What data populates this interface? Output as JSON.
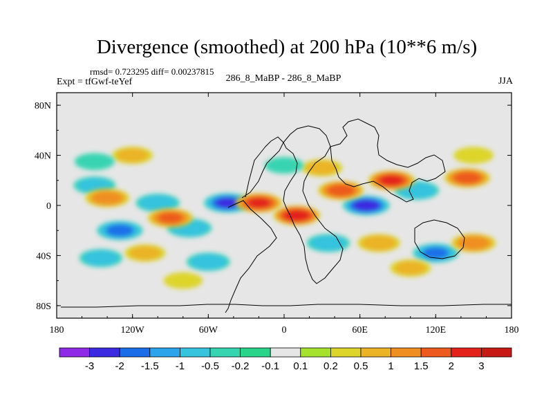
{
  "header": {
    "title": "Divergence (smoothed) at 200 hPa (10**6 m/s)",
    "stats": "rmsd= 0.723295 diff= 0.00237815",
    "experiment": "Expt = tfGwf-teYef",
    "case": "286_8_MaBP - 286_8_MaBP",
    "season": "JJA"
  },
  "chart_data": {
    "type": "heatmap",
    "title": "Divergence (smoothed) at 200 hPa (10**6 m/s)",
    "xlabel": "",
    "ylabel": "",
    "xlim": [
      -180,
      180
    ],
    "ylim": [
      -90,
      90
    ],
    "x_ticks": [
      {
        "value": -180,
        "label": "180"
      },
      {
        "value": -120,
        "label": "120W"
      },
      {
        "value": -60,
        "label": "60W"
      },
      {
        "value": 0,
        "label": "0"
      },
      {
        "value": 60,
        "label": "60E"
      },
      {
        "value": 120,
        "label": "120E"
      },
      {
        "value": 180,
        "label": "180"
      }
    ],
    "y_ticks": [
      {
        "value": 80,
        "label": "80N"
      },
      {
        "value": 40,
        "label": "40N"
      },
      {
        "value": 0,
        "label": "0"
      },
      {
        "value": -40,
        "label": "40S"
      },
      {
        "value": -80,
        "label": "80S"
      }
    ],
    "colorbar": {
      "labels": [
        "-3",
        "-2",
        "-1.5",
        "-1",
        "-0.5",
        "-0.2",
        "-0.1",
        "0.1",
        "0.2",
        "0.5",
        "1",
        "1.5",
        "2",
        "3"
      ],
      "colors": [
        "#8f2ae6",
        "#3b2ae0",
        "#1a6fe8",
        "#2ba4ec",
        "#36c3de",
        "#37d4b2",
        "#29d38a",
        "#e6e6e6",
        "#a5e22e",
        "#ddd52a",
        "#ebb325",
        "#ef8f22",
        "#ec5a1d",
        "#e3231a",
        "#c81a14"
      ]
    },
    "features": [
      {
        "lon": -100,
        "lat": 2,
        "value": -1.2
      },
      {
        "lon": -45,
        "lat": 2,
        "value": -2.6
      },
      {
        "lon": -130,
        "lat": -20,
        "value": -2.1
      },
      {
        "lon": -75,
        "lat": -18,
        "value": -1.5
      },
      {
        "lon": -60,
        "lat": -45,
        "value": -1.1
      },
      {
        "lon": -145,
        "lat": -42,
        "value": -1.0
      },
      {
        "lon": -150,
        "lat": 16,
        "value": -0.8
      },
      {
        "lon": 105,
        "lat": 12,
        "value": -1.4
      },
      {
        "lon": 65,
        "lat": 0,
        "value": -3.1
      },
      {
        "lon": 120,
        "lat": -38,
        "value": -1.9
      },
      {
        "lon": 35,
        "lat": -30,
        "value": -1.0
      },
      {
        "lon": -20,
        "lat": 2,
        "value": 2.5
      },
      {
        "lon": 10,
        "lat": -8,
        "value": 3.0
      },
      {
        "lon": 45,
        "lat": 12,
        "value": 2.0
      },
      {
        "lon": 85,
        "lat": 20,
        "value": 2.6
      },
      {
        "lon": 145,
        "lat": 22,
        "value": 2.0
      },
      {
        "lon": -140,
        "lat": 6,
        "value": 1.3
      },
      {
        "lon": -90,
        "lat": -10,
        "value": 1.7
      },
      {
        "lon": -110,
        "lat": -38,
        "value": 0.6
      },
      {
        "lon": 150,
        "lat": -30,
        "value": 1.4
      },
      {
        "lon": 75,
        "lat": -30,
        "value": 0.9
      },
      {
        "lon": 100,
        "lat": -50,
        "value": 0.6
      },
      {
        "lon": -120,
        "lat": 40,
        "value": 0.6
      },
      {
        "lon": 30,
        "lat": 30,
        "value": 0.6
      },
      {
        "lon": -150,
        "lat": 35,
        "value": -0.5
      },
      {
        "lon": 150,
        "lat": 40,
        "value": 0.5
      },
      {
        "lon": -80,
        "lat": -60,
        "value": 0.4
      },
      {
        "lon": 0,
        "lat": 32,
        "value": -0.4
      }
    ]
  }
}
